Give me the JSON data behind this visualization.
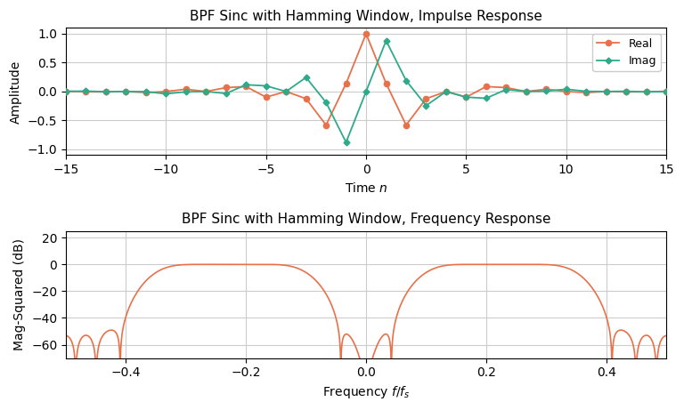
{
  "title_impulse": "BPF Sinc with Hamming Window, Impulse Response",
  "title_freq": "BPF Sinc with Hamming Window, Frequency Response",
  "xlabel_impulse": "Time $n$",
  "xlabel_freq": "Frequency $f/f_s$",
  "ylabel_impulse": "Amplitude",
  "ylabel_freq": "Mag-Squared (dB)",
  "xlim_impulse": [
    -15,
    15
  ],
  "ylim_impulse": [
    -1.1,
    1.1
  ],
  "xlim_freq": [
    -0.5,
    0.5
  ],
  "ylim_freq": [
    -70,
    25
  ],
  "color_real": "#E8714A",
  "color_imag": "#2EAA8A",
  "N": 31,
  "f_low": 0.1,
  "f_high": 0.35,
  "legend_real": "Real",
  "legend_imag": "Imag",
  "background_color": "#ffffff",
  "grid_color": "#cccccc",
  "figsize": [
    7.68,
    4.61
  ],
  "dpi": 100
}
